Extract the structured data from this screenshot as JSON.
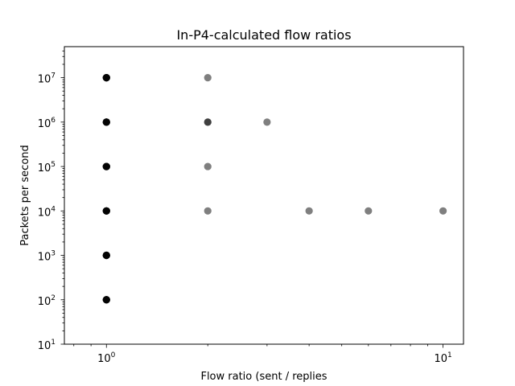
{
  "chart_data": {
    "type": "scatter",
    "title": "In-P4-calculated flow ratios",
    "xlabel": "Flow ratio (sent / replies",
    "ylabel": "Packets per second",
    "x_scale": "log",
    "y_scale": "log",
    "xlim": [
      0.75,
      11.5
    ],
    "ylim": [
      10,
      50000000
    ],
    "x_ticks": [
      {
        "value": 1,
        "base": "10",
        "exp": "0"
      },
      {
        "value": 10,
        "base": "10",
        "exp": "1"
      }
    ],
    "y_ticks": [
      {
        "value": 10,
        "base": "10",
        "exp": "1"
      },
      {
        "value": 100,
        "base": "10",
        "exp": "2"
      },
      {
        "value": 1000,
        "base": "10",
        "exp": "3"
      },
      {
        "value": 10000,
        "base": "10",
        "exp": "4"
      },
      {
        "value": 100000,
        "base": "10",
        "exp": "5"
      },
      {
        "value": 1000000,
        "base": "10",
        "exp": "6"
      },
      {
        "value": 10000000,
        "base": "10",
        "exp": "7"
      }
    ],
    "grid": false,
    "marker_color": "#000000",
    "marker_opacity": 0.5,
    "series": [
      {
        "points": [
          {
            "x": 1,
            "y": 100,
            "overlap": 6
          },
          {
            "x": 1,
            "y": 1000,
            "overlap": 6
          },
          {
            "x": 1,
            "y": 10000,
            "overlap": 6
          },
          {
            "x": 1,
            "y": 100000,
            "overlap": 6
          },
          {
            "x": 1,
            "y": 1000000,
            "overlap": 6
          },
          {
            "x": 1,
            "y": 10000000,
            "overlap": 6
          },
          {
            "x": 2,
            "y": 10000000,
            "overlap": 1
          },
          {
            "x": 2,
            "y": 1000000,
            "overlap": 2
          },
          {
            "x": 2,
            "y": 100000,
            "overlap": 1
          },
          {
            "x": 2,
            "y": 10000,
            "overlap": 1
          },
          {
            "x": 3,
            "y": 1000000,
            "overlap": 1
          },
          {
            "x": 4,
            "y": 10000,
            "overlap": 1
          },
          {
            "x": 6,
            "y": 10000,
            "overlap": 1
          },
          {
            "x": 10,
            "y": 10000,
            "overlap": 1
          }
        ]
      }
    ]
  }
}
